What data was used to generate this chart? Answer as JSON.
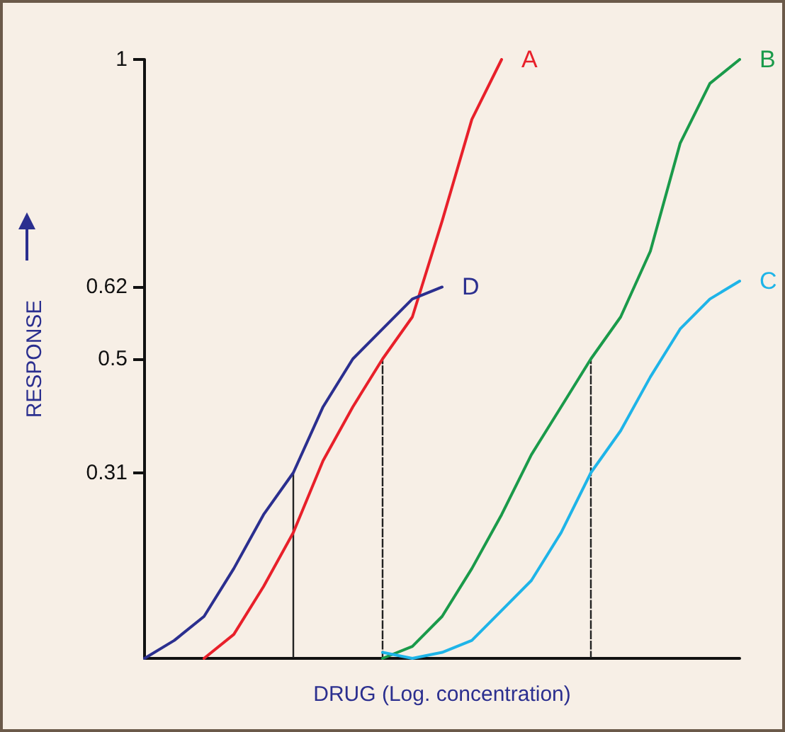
{
  "chart_data": {
    "type": "line",
    "xlabel": "DRUG (Log. concentration)",
    "ylabel": "RESPONSE",
    "categories": [
      null,
      null,
      null,
      null,
      null,
      null,
      null,
      null,
      null,
      null,
      null,
      null,
      null,
      null,
      null,
      null,
      null,
      null,
      null,
      null,
      null
    ],
    "ylim": [
      0,
      1
    ],
    "yticks": [
      0.31,
      0.5,
      0.62,
      1
    ],
    "grid": false,
    "marker": "none",
    "series": [
      {
        "name": "A",
        "color": "#e8202a",
        "values": [
          null,
          null,
          0,
          0.04,
          0.12,
          0.21,
          0.33,
          0.42,
          0.5,
          0.57,
          0.73,
          0.9,
          1,
          null,
          null,
          null,
          null,
          null,
          null,
          null,
          null
        ]
      },
      {
        "name": "B",
        "color": "#1a9a4a",
        "values": [
          null,
          null,
          null,
          null,
          null,
          null,
          null,
          null,
          0,
          0.02,
          0.07,
          0.15,
          0.24,
          0.34,
          0.42,
          0.5,
          0.57,
          0.68,
          0.86,
          0.96,
          1
        ]
      },
      {
        "name": "C",
        "color": "#1eb4e8",
        "values": [
          null,
          null,
          null,
          null,
          null,
          null,
          null,
          null,
          0.01,
          0,
          0.01,
          0.03,
          0.08,
          0.13,
          0.21,
          0.31,
          0.38,
          0.47,
          0.55,
          0.6,
          0.63
        ]
      },
      {
        "name": "D",
        "color": "#2b2f8f",
        "values": [
          0,
          0.03,
          0.07,
          0.15,
          0.24,
          0.31,
          0.42,
          0.5,
          0.55,
          0.6,
          0.62,
          null,
          null,
          null,
          null,
          null,
          null,
          null,
          null,
          null,
          null
        ]
      },
      {
        "type": "bar",
        "color": "#222222",
        "line_style": "dashed",
        "values": [
          null,
          null,
          null,
          null,
          null,
          0.31,
          null,
          null,
          0.5,
          null,
          null,
          null,
          null,
          null,
          null,
          0.5,
          null,
          null,
          null,
          null,
          null
        ]
      }
    ]
  }
}
